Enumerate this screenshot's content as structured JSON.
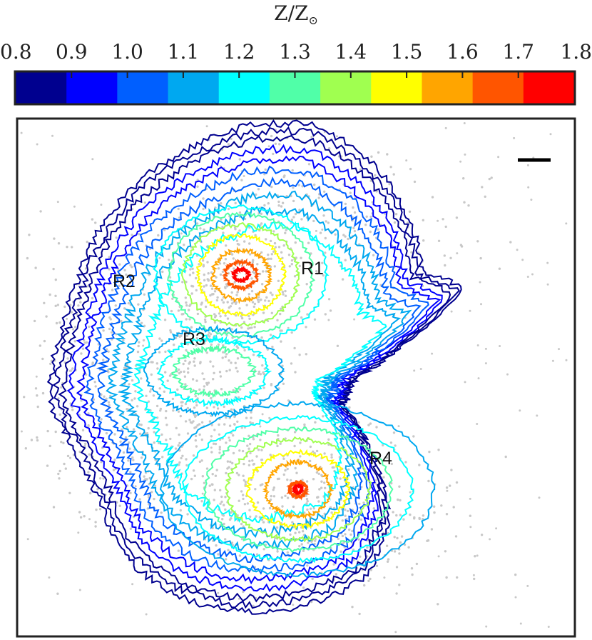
{
  "chart_data": {
    "type": "contour",
    "colorbar": {
      "label_main": "Z/Z",
      "label_symbol": "⊙",
      "ticks": [
        "0.8",
        "0.9",
        "1.0",
        "1.1",
        "1.2",
        "1.3",
        "1.4",
        "1.5",
        "1.6",
        "1.7",
        "1.8"
      ],
      "range": [
        0.8,
        1.8
      ],
      "colors": [
        "#00008f",
        "#0000ff",
        "#005fff",
        "#00a8f0",
        "#00ffff",
        "#50ffa8",
        "#a0ff50",
        "#ffff00",
        "#ffa500",
        "#ff5500",
        "#ff0000"
      ]
    },
    "region_labels": [
      "R1",
      "R2",
      "R3",
      "R4"
    ],
    "scale_bar": true,
    "background_points_color": "#c8c8c8",
    "grid": false
  }
}
